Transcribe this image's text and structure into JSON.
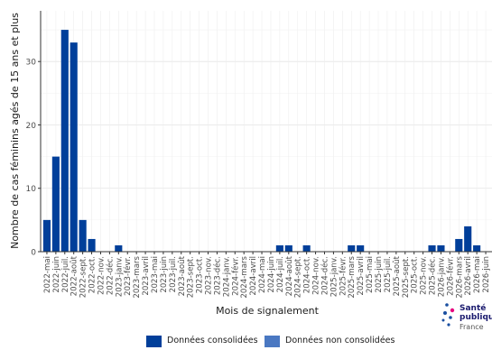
{
  "chart_data": {
    "type": "bar",
    "ylabel": "Nombre de cas féminins agés de 15 ans et plus",
    "xlabel": "Mois de signalement",
    "ylim": [
      0,
      38
    ],
    "yticks": [
      0,
      10,
      20,
      30
    ],
    "grid": true,
    "legend_position": "bottom",
    "categories": [
      "2022-mai",
      "2022-juin",
      "2022-juil.",
      "2022-août",
      "2022-sept.",
      "2022-oct.",
      "2022-nov.",
      "2022-déc.",
      "2023-janv.",
      "2023-févr.",
      "2023-mars",
      "2023-avril",
      "2023-mai",
      "2023-juin",
      "2023-juil.",
      "2023-août",
      "2023-sept.",
      "2023-oct.",
      "2023-nov.",
      "2023-déc.",
      "2024-janv.",
      "2024-févr.",
      "2024-mars",
      "2024-avril",
      "2024-mai",
      "2024-juin",
      "2024-juil.",
      "2024-août",
      "2024-sept.",
      "2024-oct.",
      "2024-nov.",
      "2024-déc.",
      "2025-janv.",
      "2025-févr.",
      "2025-mars",
      "2025-avril",
      "2025-mai",
      "2025-juin",
      "2025-juil.",
      "2025-août",
      "2025-sept.",
      "2025-oct.",
      "2025-nov.",
      "2025-déc.",
      "2026-janv.",
      "2026-févr.",
      "2026-mars",
      "2026-avril",
      "2026-mai",
      "2026-juin"
    ],
    "series": [
      {
        "name": "Données consolidées",
        "color": "#003f9a",
        "values": [
          5,
          15,
          35,
          33,
          5,
          2,
          0,
          0,
          1,
          0,
          0,
          0,
          0,
          0,
          0,
          0,
          0,
          0,
          0,
          0,
          0,
          0,
          0,
          0,
          0,
          0,
          1,
          1,
          0,
          1,
          0,
          0,
          0,
          0,
          1,
          1,
          0,
          0,
          0,
          0,
          0,
          0,
          0,
          1,
          1,
          0,
          2,
          4,
          1,
          0
        ]
      },
      {
        "name": "Données non consolidées",
        "color": "#4a78c2",
        "values": [
          0,
          0,
          0,
          0,
          0,
          0,
          0,
          0,
          0,
          0,
          0,
          0,
          0,
          0,
          0,
          0,
          0,
          0,
          0,
          0,
          0,
          0,
          0,
          0,
          0,
          0,
          0,
          0,
          0,
          0,
          0,
          0,
          0,
          0,
          0,
          0,
          0,
          0,
          0,
          0,
          0,
          0,
          0,
          0,
          0,
          0,
          0,
          0,
          0,
          0
        ]
      }
    ]
  },
  "logo": {
    "line1": "Santé",
    "line2": "publique",
    "line3": "France"
  }
}
